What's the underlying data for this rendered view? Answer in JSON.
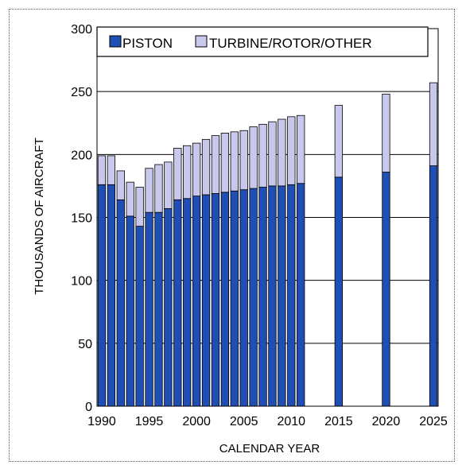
{
  "chart_data": {
    "type": "bar",
    "stacked": true,
    "xlabel": "CALENDAR YEAR",
    "ylabel": "THOUSANDS OF AIRCRAFT",
    "ylim": [
      0,
      300
    ],
    "yticks": [
      0,
      50,
      100,
      150,
      200,
      250,
      300
    ],
    "xticks": [
      1990,
      1995,
      2000,
      2005,
      2010,
      2015,
      2020,
      2025
    ],
    "xlim": [
      1989.5,
      2025.5
    ],
    "grid": "horizontal",
    "legend_position": "top",
    "categories": [
      1990,
      1991,
      1992,
      1993,
      1994,
      1995,
      1996,
      1997,
      1998,
      1999,
      2000,
      2001,
      2002,
      2003,
      2004,
      2005,
      2006,
      2007,
      2008,
      2009,
      2010,
      2011,
      2015,
      2020,
      2025
    ],
    "series": [
      {
        "name": "PISTON",
        "color": "#1f4fb5",
        "values": [
          176,
          176,
          164,
          151,
          143,
          154,
          154,
          157,
          164,
          165,
          167,
          168,
          169,
          170,
          171,
          172,
          173,
          174,
          175,
          175,
          176,
          177,
          182,
          186,
          191
        ]
      },
      {
        "name": "TURBINE/ROTOR/OTHER",
        "color": "#c8c8ec",
        "values": [
          23,
          23,
          23,
          27,
          31,
          35,
          38,
          37,
          41,
          42,
          42,
          44,
          46,
          47,
          47,
          47,
          49,
          50,
          51,
          53,
          54,
          54,
          57,
          62,
          66
        ]
      }
    ]
  }
}
